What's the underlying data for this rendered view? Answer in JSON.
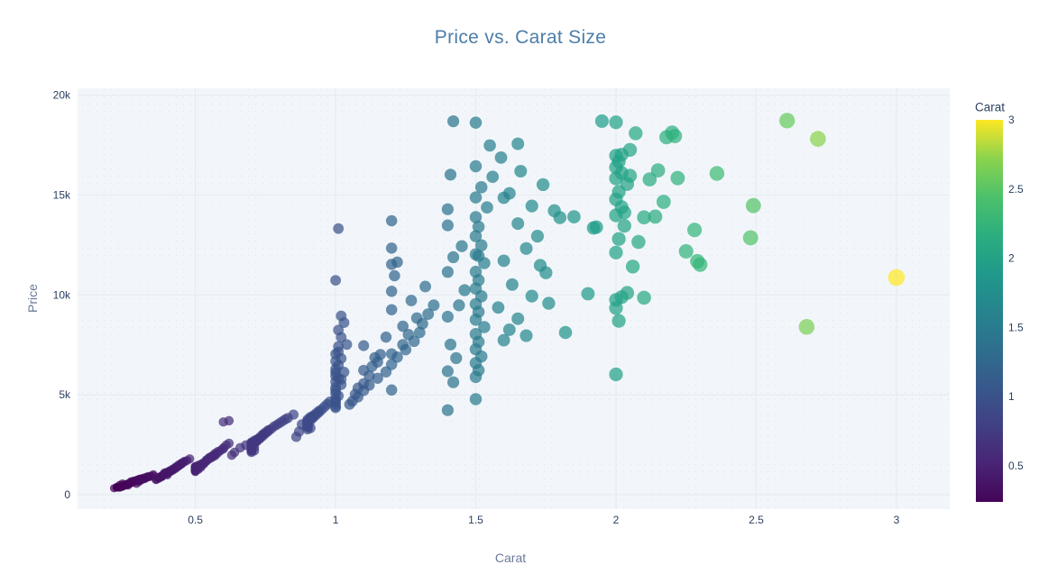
{
  "chart_data": {
    "type": "scatter",
    "title": "Price vs. Carat Size",
    "xlabel": "Carat",
    "ylabel": "Price",
    "xlim": [
      0.08,
      3.19
    ],
    "ylim": [
      -720,
      20340
    ],
    "grid": true,
    "x_ticks": {
      "values": [
        0.5,
        1,
        1.5,
        2,
        2.5,
        3
      ],
      "labels": [
        "0.5",
        "1",
        "1.5",
        "2",
        "2.5",
        "3"
      ]
    },
    "y_ticks": {
      "values": [
        0,
        5000,
        10000,
        15000,
        20000
      ],
      "labels": [
        "0",
        "5k",
        "10k",
        "15k",
        "20k"
      ]
    },
    "colorbar": {
      "title": "Carat",
      "colorscale": "Viridis",
      "bar_min": 0.24,
      "bar_max": 3.0,
      "ticks": [
        0.5,
        1,
        1.5,
        2,
        2.5,
        3
      ],
      "tick_labels": [
        "0.5",
        "1",
        "1.5",
        "2",
        "2.5",
        "3"
      ]
    },
    "marker": {
      "opacity": 0.72,
      "color_by": "carat",
      "size_by": "carat",
      "cmin": 0.2,
      "cmax": 3.0
    },
    "points_format": [
      "carat",
      "price"
    ],
    "points": [
      [
        0.23,
        352
      ],
      [
        0.21,
        326
      ],
      [
        0.24,
        404
      ],
      [
        0.26,
        554
      ],
      [
        0.3,
        709
      ],
      [
        0.32,
        793
      ],
      [
        0.23,
        489
      ],
      [
        0.29,
        552
      ],
      [
        0.31,
        817
      ],
      [
        0.24,
        559
      ],
      [
        0.33,
        918
      ],
      [
        0.27,
        624
      ],
      [
        0.22,
        367
      ],
      [
        0.3,
        789
      ],
      [
        0.35,
        949
      ],
      [
        0.28,
        684
      ],
      [
        0.25,
        525
      ],
      [
        0.26,
        468
      ],
      [
        0.32,
        862
      ],
      [
        0.3,
        655
      ],
      [
        0.24,
        432
      ],
      [
        0.27,
        593
      ],
      [
        0.34,
        905
      ],
      [
        0.23,
        402
      ],
      [
        0.31,
        752
      ],
      [
        0.29,
        718
      ],
      [
        0.25,
        475
      ],
      [
        0.33,
        883
      ],
      [
        0.26,
        513
      ],
      [
        0.28,
        640
      ],
      [
        0.3,
        772
      ],
      [
        0.22,
        357
      ],
      [
        0.35,
        1013
      ],
      [
        0.27,
        663
      ],
      [
        0.24,
        419
      ],
      [
        0.32,
        828
      ],
      [
        0.29,
        731
      ],
      [
        0.23,
        378
      ],
      [
        0.31,
        796
      ],
      [
        0.26,
        548
      ],
      [
        0.34,
        942
      ],
      [
        0.25,
        462
      ],
      [
        0.28,
        701
      ],
      [
        0.3,
        740
      ],
      [
        0.27,
        580
      ],
      [
        0.33,
        867
      ],
      [
        0.24,
        446
      ],
      [
        0.29,
        690
      ],
      [
        0.22,
        389
      ],
      [
        0.31,
        810
      ],
      [
        0.38,
        893
      ],
      [
        0.4,
        1052
      ],
      [
        0.42,
        1255
      ],
      [
        0.36,
        772
      ],
      [
        0.44,
        1421
      ],
      [
        0.4,
        984
      ],
      [
        0.39,
        1103
      ],
      [
        0.41,
        1180
      ],
      [
        0.43,
        1313
      ],
      [
        0.37,
        816
      ],
      [
        0.45,
        1526
      ],
      [
        0.4,
        1137
      ],
      [
        0.38,
        957
      ],
      [
        0.42,
        1224
      ],
      [
        0.46,
        1631
      ],
      [
        0.4,
        1078
      ],
      [
        0.39,
        1011
      ],
      [
        0.44,
        1488
      ],
      [
        0.37,
        884
      ],
      [
        0.41,
        1167
      ],
      [
        0.43,
        1356
      ],
      [
        0.38,
        926
      ],
      [
        0.45,
        1579
      ],
      [
        0.4,
        1120
      ],
      [
        0.42,
        1290
      ],
      [
        0.36,
        745
      ],
      [
        0.47,
        1710
      ],
      [
        0.39,
        1049
      ],
      [
        0.41,
        1215
      ],
      [
        0.44,
        1445
      ],
      [
        0.38,
        902
      ],
      [
        0.43,
        1389
      ],
      [
        0.4,
        1095
      ],
      [
        0.46,
        1668
      ],
      [
        0.37,
        851
      ],
      [
        0.42,
        1268
      ],
      [
        0.45,
        1550
      ],
      [
        0.39,
        1028
      ],
      [
        0.48,
        1795
      ],
      [
        0.41,
        1148
      ],
      [
        0.5,
        1345
      ],
      [
        0.52,
        1532
      ],
      [
        0.5,
        1229
      ],
      [
        0.54,
        1701
      ],
      [
        0.51,
        1428
      ],
      [
        0.56,
        1875
      ],
      [
        0.5,
        1160
      ],
      [
        0.53,
        1610
      ],
      [
        0.55,
        1793
      ],
      [
        0.5,
        1394
      ],
      [
        0.57,
        1952
      ],
      [
        0.52,
        1485
      ],
      [
        0.51,
        1261
      ],
      [
        0.58,
        2094
      ],
      [
        0.5,
        1323
      ],
      [
        0.54,
        1745
      ],
      [
        0.56,
        1908
      ],
      [
        0.53,
        1566
      ],
      [
        0.5,
        1184
      ],
      [
        0.59,
        2217
      ],
      [
        0.52,
        1451
      ],
      [
        0.55,
        1832
      ],
      [
        0.51,
        1305
      ],
      [
        0.6,
        2342
      ],
      [
        0.57,
        2010
      ],
      [
        0.5,
        1413
      ],
      [
        0.54,
        1688
      ],
      [
        0.61,
        2480
      ],
      [
        0.53,
        1540
      ],
      [
        0.56,
        1940
      ],
      [
        0.52,
        1377
      ],
      [
        0.58,
        2155
      ],
      [
        0.5,
        1240
      ],
      [
        0.6,
        2296
      ],
      [
        0.55,
        1860
      ],
      [
        0.62,
        2570
      ],
      [
        0.51,
        1468
      ],
      [
        0.57,
        2063
      ],
      [
        0.6,
        3640
      ],
      [
        0.62,
        3705
      ],
      [
        0.64,
        2120
      ],
      [
        0.66,
        2350
      ],
      [
        0.68,
        2480
      ],
      [
        0.63,
        1980
      ],
      [
        0.87,
        3160
      ],
      [
        0.86,
        2890
      ],
      [
        0.88,
        3520
      ],
      [
        0.7,
        2240
      ],
      [
        0.7,
        2405
      ],
      [
        0.71,
        2560
      ],
      [
        0.7,
        2130
      ],
      [
        0.72,
        2688
      ],
      [
        0.7,
        2352
      ],
      [
        0.73,
        2815
      ],
      [
        0.7,
        2477
      ],
      [
        0.71,
        2205
      ],
      [
        0.74,
        2930
      ],
      [
        0.7,
        2590
      ],
      [
        0.72,
        2751
      ],
      [
        0.7,
        2288
      ],
      [
        0.75,
        3058
      ],
      [
        0.71,
        2640
      ],
      [
        0.7,
        2422
      ],
      [
        0.73,
        2874
      ],
      [
        0.76,
        3175
      ],
      [
        0.7,
        2515
      ],
      [
        0.72,
        2709
      ],
      [
        0.77,
        3290
      ],
      [
        0.71,
        2380
      ],
      [
        0.74,
        2988
      ],
      [
        0.7,
        2557
      ],
      [
        0.78,
        3410
      ],
      [
        0.73,
        2840
      ],
      [
        0.7,
        2195
      ],
      [
        0.75,
        3120
      ],
      [
        0.8,
        3580
      ],
      [
        0.72,
        2772
      ],
      [
        0.79,
        3495
      ],
      [
        0.7,
        2460
      ],
      [
        0.81,
        3672
      ],
      [
        0.74,
        3015
      ],
      [
        0.83,
        3840
      ],
      [
        0.7,
        2620
      ],
      [
        0.76,
        3230
      ],
      [
        0.85,
        4010
      ],
      [
        0.71,
        2710
      ],
      [
        0.82,
        3766
      ],
      [
        0.9,
        3420
      ],
      [
        0.9,
        3570
      ],
      [
        0.91,
        3705
      ],
      [
        0.9,
        3280
      ],
      [
        0.92,
        3860
      ],
      [
        0.9,
        3515
      ],
      [
        0.93,
        3990
      ],
      [
        0.9,
        3645
      ],
      [
        0.91,
        3340
      ],
      [
        0.94,
        4120
      ],
      [
        0.9,
        3760
      ],
      [
        0.92,
        3905
      ],
      [
        0.9,
        3450
      ],
      [
        0.95,
        4260
      ],
      [
        0.91,
        3820
      ],
      [
        0.9,
        3600
      ],
      [
        0.96,
        4395
      ],
      [
        0.93,
        4060
      ],
      [
        0.9,
        3690
      ],
      [
        0.97,
        4530
      ],
      [
        0.92,
        3950
      ],
      [
        0.9,
        3385
      ],
      [
        0.98,
        4650
      ],
      [
        0.94,
        4180
      ],
      [
        0.91,
        3880
      ],
      [
        1.0,
        4420
      ],
      [
        1.0,
        4680
      ],
      [
        1.01,
        4950
      ],
      [
        1.0,
        5230
      ],
      [
        1.02,
        5510
      ],
      [
        1.0,
        4560
      ],
      [
        1.01,
        5820
      ],
      [
        1.0,
        5060
      ],
      [
        1.03,
        6140
      ],
      [
        1.0,
        5370
      ],
      [
        1.01,
        6480
      ],
      [
        1.0,
        4810
      ],
      [
        1.02,
        6820
      ],
      [
        1.0,
        5650
      ],
      [
        1.01,
        7150
      ],
      [
        1.04,
        7520
      ],
      [
        1.0,
        5940
      ],
      [
        1.02,
        7880
      ],
      [
        1.0,
        6290
      ],
      [
        1.01,
        8240
      ],
      [
        1.03,
        8610
      ],
      [
        1.0,
        6680
      ],
      [
        1.02,
        8950
      ],
      [
        1.0,
        7040
      ],
      [
        1.01,
        7420
      ],
      [
        1.0,
        10730
      ],
      [
        1.01,
        13320
      ],
      [
        1.0,
        6120
      ],
      [
        1.02,
        5780
      ],
      [
        1.0,
        4350
      ],
      [
        1.05,
        4520
      ],
      [
        1.08,
        4890
      ],
      [
        1.1,
        5210
      ],
      [
        1.12,
        5480
      ],
      [
        1.15,
        5830
      ],
      [
        1.06,
        4680
      ],
      [
        1.18,
        6150
      ],
      [
        1.1,
        5560
      ],
      [
        1.2,
        6520
      ],
      [
        1.07,
        5020
      ],
      [
        1.22,
        6890
      ],
      [
        1.12,
        5950
      ],
      [
        1.25,
        7260
      ],
      [
        1.1,
        6230
      ],
      [
        1.15,
        6640
      ],
      [
        1.2,
        7050
      ],
      [
        1.28,
        7680
      ],
      [
        1.08,
        5340
      ],
      [
        1.3,
        8120
      ],
      [
        1.13,
        6420
      ],
      [
        1.24,
        7510
      ],
      [
        1.2,
        9260
      ],
      [
        1.2,
        10180
      ],
      [
        1.21,
        10960
      ],
      [
        1.2,
        11530
      ],
      [
        1.22,
        11640
      ],
      [
        1.31,
        8560
      ],
      [
        1.16,
        7020
      ],
      [
        1.26,
        8010
      ],
      [
        1.33,
        9040
      ],
      [
        1.1,
        7460
      ],
      [
        1.35,
        9480
      ],
      [
        1.14,
        6860
      ],
      [
        1.29,
        8840
      ],
      [
        1.2,
        5240
      ],
      [
        1.24,
        8430
      ],
      [
        1.18,
        7890
      ],
      [
        1.32,
        10420
      ],
      [
        1.27,
        9720
      ],
      [
        1.2,
        12340
      ],
      [
        1.2,
        13710
      ],
      [
        1.4,
        4230
      ],
      [
        1.42,
        5630
      ],
      [
        1.4,
        6180
      ],
      [
        1.43,
        6840
      ],
      [
        1.41,
        7520
      ],
      [
        1.4,
        8910
      ],
      [
        1.44,
        9480
      ],
      [
        1.4,
        11150
      ],
      [
        1.42,
        11890
      ],
      [
        1.45,
        12440
      ],
      [
        1.4,
        14290
      ],
      [
        1.41,
        16020
      ],
      [
        1.42,
        18690
      ],
      [
        1.4,
        13480
      ],
      [
        1.46,
        10240
      ],
      [
        1.5,
        4780
      ],
      [
        1.5,
        5890
      ],
      [
        1.51,
        6230
      ],
      [
        1.5,
        6590
      ],
      [
        1.52,
        6920
      ],
      [
        1.5,
        7280
      ],
      [
        1.51,
        7650
      ],
      [
        1.5,
        8040
      ],
      [
        1.53,
        8390
      ],
      [
        1.5,
        8760
      ],
      [
        1.51,
        9150
      ],
      [
        1.5,
        9540
      ],
      [
        1.52,
        9930
      ],
      [
        1.5,
        10320
      ],
      [
        1.51,
        10740
      ],
      [
        1.5,
        11160
      ],
      [
        1.53,
        11590
      ],
      [
        1.5,
        12030
      ],
      [
        1.52,
        12480
      ],
      [
        1.5,
        12940
      ],
      [
        1.51,
        13410
      ],
      [
        1.5,
        13890
      ],
      [
        1.54,
        14380
      ],
      [
        1.5,
        14880
      ],
      [
        1.52,
        15390
      ],
      [
        1.56,
        15910
      ],
      [
        1.5,
        16440
      ],
      [
        1.55,
        17480
      ],
      [
        1.5,
        18620
      ],
      [
        1.51,
        11950
      ],
      [
        1.6,
        7730
      ],
      [
        1.62,
        8260
      ],
      [
        1.65,
        8810
      ],
      [
        1.58,
        9370
      ],
      [
        1.7,
        9940
      ],
      [
        1.63,
        10520
      ],
      [
        1.75,
        11110
      ],
      [
        1.6,
        11710
      ],
      [
        1.68,
        12320
      ],
      [
        1.72,
        12940
      ],
      [
        1.65,
        13570
      ],
      [
        1.78,
        14210
      ],
      [
        1.6,
        14860
      ],
      [
        1.74,
        15520
      ],
      [
        1.66,
        16190
      ],
      [
        1.59,
        16870
      ],
      [
        1.65,
        17560
      ],
      [
        1.8,
        13870
      ],
      [
        1.85,
        13910
      ],
      [
        1.7,
        14450
      ],
      [
        1.62,
        15080
      ],
      [
        1.76,
        9580
      ],
      [
        1.82,
        8120
      ],
      [
        1.68,
        7960
      ],
      [
        1.73,
        11480
      ],
      [
        1.9,
        10060
      ],
      [
        1.93,
        13390
      ],
      [
        1.95,
        18700
      ],
      [
        1.92,
        13350
      ],
      [
        2.0,
        6020
      ],
      [
        2.01,
        8700
      ],
      [
        2.0,
        9340
      ],
      [
        2.02,
        9890
      ],
      [
        2.0,
        12120
      ],
      [
        2.01,
        12800
      ],
      [
        2.03,
        13460
      ],
      [
        2.0,
        13980
      ],
      [
        2.02,
        14390
      ],
      [
        2.0,
        14780
      ],
      [
        2.01,
        15160
      ],
      [
        2.04,
        15550
      ],
      [
        2.0,
        15830
      ],
      [
        2.02,
        16100
      ],
      [
        2.0,
        16390
      ],
      [
        2.01,
        16680
      ],
      [
        2.0,
        16970
      ],
      [
        2.05,
        17260
      ],
      [
        2.0,
        18640
      ],
      [
        2.03,
        14120
      ],
      [
        2.06,
        11420
      ],
      [
        2.08,
        12650
      ],
      [
        2.1,
        13880
      ],
      [
        2.05,
        15960
      ],
      [
        2.0,
        9750
      ],
      [
        2.04,
        10100
      ],
      [
        2.07,
        18090
      ],
      [
        2.02,
        17020
      ],
      [
        2.12,
        15780
      ],
      [
        2.15,
        16230
      ],
      [
        2.18,
        17890
      ],
      [
        2.2,
        18120
      ],
      [
        2.22,
        15850
      ],
      [
        2.14,
        13920
      ],
      [
        2.25,
        12180
      ],
      [
        2.3,
        11520
      ],
      [
        2.17,
        14660
      ],
      [
        2.28,
        13250
      ],
      [
        2.1,
        9860
      ],
      [
        2.21,
        17950
      ],
      [
        2.36,
        16080
      ],
      [
        2.49,
        14470
      ],
      [
        2.48,
        12860
      ],
      [
        2.61,
        18720
      ],
      [
        2.72,
        17810
      ],
      [
        2.68,
        8400
      ],
      [
        3.0,
        10870
      ],
      [
        2.29,
        11680
      ]
    ]
  },
  "colors": {
    "title": "#4d7ea7",
    "tick": "#2a3f5f",
    "axis_title": "#6b7a9b",
    "plot_bg": "#f2f6fa",
    "grid": "#e6ecf2",
    "page_bg": "#ffffff"
  }
}
